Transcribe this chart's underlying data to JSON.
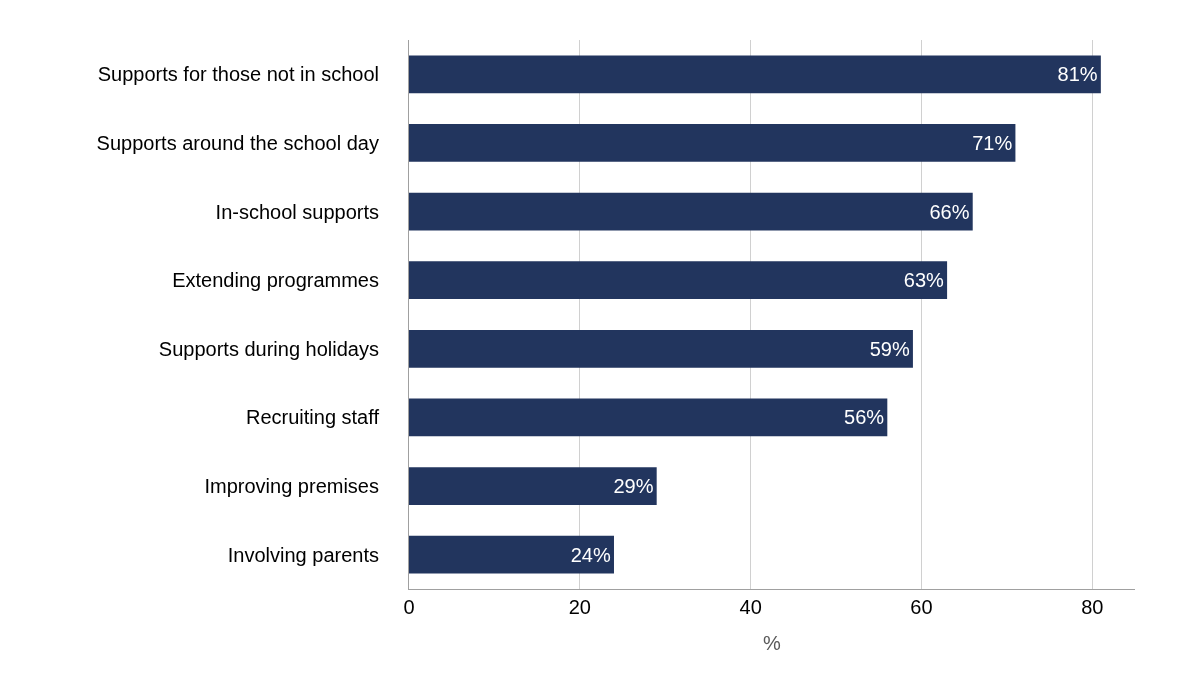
{
  "chart_data": {
    "type": "bar",
    "orientation": "horizontal",
    "xlabel": "%",
    "categories": [
      "Supports for those not in school",
      "Supports around the school day",
      "In-school supports",
      "Extending programmes",
      "Supports during holidays",
      "Recruiting staff",
      "Improving premises",
      "Involving parents"
    ],
    "values": [
      81,
      71,
      66,
      63,
      59,
      56,
      29,
      24
    ],
    "value_labels": [
      "81%",
      "71%",
      "66%",
      "63%",
      "59%",
      "56%",
      "29%",
      "24%"
    ],
    "color": "#22355e",
    "xlim": [
      0,
      85
    ],
    "xticks": [
      0,
      20,
      40,
      60,
      80
    ],
    "grid": "x",
    "legend": false
  }
}
